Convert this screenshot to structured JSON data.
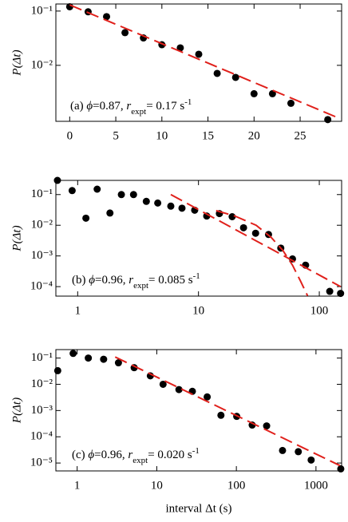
{
  "chart_data": [
    {
      "type": "scatter",
      "ylabel": "P(Δt)",
      "annotation": [
        "(a) ",
        "ϕ",
        "=0.87, ",
        "r",
        "expt",
        "= 0.17 s",
        "-1"
      ],
      "xlim": [
        -1.5,
        29.5
      ],
      "xticks": [
        0,
        5,
        10,
        15,
        20,
        25
      ],
      "ylim": [
        0.00093,
        0.135
      ],
      "ylog": true,
      "yticks": [
        {
          "value": 0.1,
          "label": "10⁻¹"
        },
        {
          "value": 0.01,
          "label": "10⁻²"
        }
      ],
      "series": [
        {
          "color": "#000000",
          "x": [
            0,
            2,
            4,
            6,
            8,
            10,
            12,
            14,
            16,
            18,
            20,
            22,
            24,
            28
          ],
          "values": [
            0.12,
            0.097,
            0.079,
            0.04,
            0.032,
            0.024,
            0.021,
            0.016,
            0.0071,
            0.006,
            0.003,
            0.003,
            0.002,
            0.001
          ]
        },
        {
          "color": "#e0201b",
          "style": "dashed",
          "x": [
            0,
            29
          ],
          "values": [
            0.13,
            0.0011
          ]
        }
      ]
    },
    {
      "type": "scatter",
      "ylabel": "P(Δt)",
      "annotation": [
        "(b) ",
        "ϕ",
        "=0.96, ",
        "r",
        "expt",
        "= 0.085 s",
        "-1"
      ],
      "xlim": [
        0.66,
        153
      ],
      "xlog": true,
      "xticks": [
        1,
        10,
        100
      ],
      "ylim": [
        4.9e-05,
        0.29
      ],
      "ylog": true,
      "yticks": [
        {
          "value": 0.1,
          "label": "10⁻¹"
        },
        {
          "value": 0.01,
          "label": "10⁻²"
        },
        {
          "value": 0.001,
          "label": "10⁻³"
        },
        {
          "value": 0.0001,
          "label": "10⁻⁴"
        }
      ],
      "series": [
        {
          "color": "#000000",
          "x": [
            0.68,
            0.9,
            1.17,
            1.45,
            1.85,
            2.3,
            2.9,
            3.7,
            4.6,
            5.9,
            7.3,
            9.3,
            11.7,
            14.9,
            19,
            23.6,
            29.7,
            38,
            48,
            60,
            77,
            122,
            150
          ],
          "values": [
            0.29,
            0.135,
            0.017,
            0.15,
            0.025,
            0.1,
            0.1,
            0.06,
            0.053,
            0.042,
            0.036,
            0.031,
            0.02,
            0.024,
            0.019,
            0.0083,
            0.0055,
            0.005,
            0.0018,
            0.0008,
            0.0005,
            7e-05,
            6e-05
          ]
        },
        {
          "color": "#e0201b",
          "style": "dashed",
          "x": [
            5.9,
            150
          ],
          "values": [
            0.1,
            0.0001
          ]
        },
        {
          "color": "#e0201b",
          "style": "dashed",
          "x": [
            14,
            20,
            30,
            40,
            50,
            60,
            70,
            80
          ],
          "values": [
            0.03,
            0.02,
            0.01,
            0.004,
            0.0015,
            0.0005,
            0.00015,
            5e-05
          ]
        }
      ]
    },
    {
      "type": "scatter",
      "ylabel": "P(Δt)",
      "xlabel": "interval Δt (s)",
      "annotation": [
        "(c) ",
        "ϕ",
        "=0.96, ",
        "r",
        "expt",
        "= 0.020 s",
        "-1"
      ],
      "xlim": [
        0.54,
        2100
      ],
      "xlog": true,
      "xticks": [
        1,
        10,
        100,
        1000
      ],
      "ylim": [
        5e-06,
        0.21
      ],
      "ylog": true,
      "yticks": [
        {
          "value": 0.1,
          "label": "10⁻¹"
        },
        {
          "value": 0.01,
          "label": "10⁻²"
        },
        {
          "value": 0.001,
          "label": "10⁻³"
        },
        {
          "value": 0.0001,
          "label": "10⁻⁴"
        },
        {
          "value": 1e-05,
          "label": "10⁻⁵"
        }
      ],
      "series": [
        {
          "color": "#000000",
          "x": [
            0.57,
            0.89,
            1.38,
            2.15,
            3.3,
            5.2,
            8.3,
            12,
            19,
            28,
            43,
            64,
            101,
            158,
            240,
            380,
            600,
            870,
            2050
          ],
          "values": [
            0.033,
            0.15,
            0.1,
            0.09,
            0.066,
            0.043,
            0.021,
            0.01,
            0.0063,
            0.0054,
            0.0033,
            0.00066,
            0.0006,
            0.00028,
            0.00026,
            3e-05,
            2.7e-05,
            1.3e-05,
            6e-06
          ]
        },
        {
          "color": "#e0201b",
          "style": "dashed",
          "x": [
            3,
            2000
          ],
          "values": [
            0.11,
            8e-06
          ]
        }
      ]
    }
  ]
}
